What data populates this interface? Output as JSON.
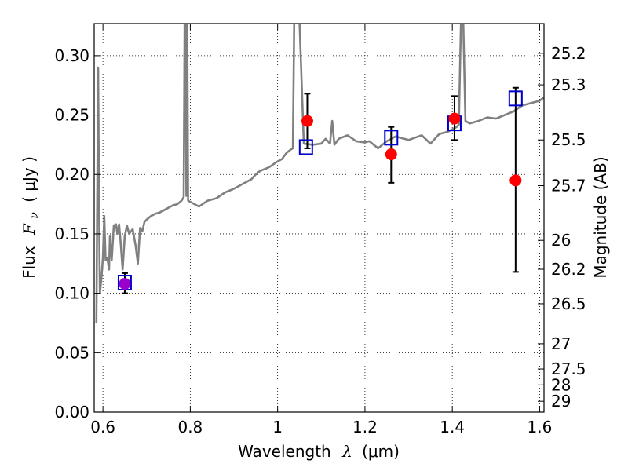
{
  "chart_data": {
    "type": "scatter",
    "xlabel": {
      "text": "Wavelength",
      "symbol": "λ",
      "unit": "(μm)"
    },
    "ylabel": {
      "text": "Flux",
      "symbol": "F",
      "subscript": "ν",
      "unit": "( μJy )"
    },
    "y2label": "Magnitude (AB)",
    "xlim": [
      0.58,
      1.61
    ],
    "ylim": [
      0.0,
      0.327
    ],
    "grid": true,
    "x_ticks": [
      0.6,
      0.8,
      1.0,
      1.2,
      1.4,
      1.6
    ],
    "x_tick_labels": [
      "0.6",
      "0.8",
      "1",
      "1.2",
      "1.4",
      "1.6"
    ],
    "y_ticks": [
      0.0,
      0.05,
      0.1,
      0.15,
      0.2,
      0.25,
      0.3
    ],
    "y_tick_labels": [
      "0.00",
      "0.05",
      "0.10",
      "0.15",
      "0.20",
      "0.25",
      "0.30"
    ],
    "mag_ticks": [
      25.2,
      25.3,
      25.5,
      25.7,
      26,
      26.2,
      26.5,
      27,
      27.5,
      28,
      29
    ],
    "mag_tick_labels": [
      "25.2",
      "25.3",
      "25.5",
      "25.7",
      "26",
      "26.2",
      "26.5",
      "27",
      "27.5",
      "28",
      "29"
    ],
    "series": [
      {
        "kind": "line",
        "color": "#808080",
        "x": [
          0.585,
          0.589,
          0.591,
          0.593,
          0.597,
          0.6,
          0.603,
          0.606,
          0.61,
          0.614,
          0.616,
          0.62,
          0.625,
          0.63,
          0.633,
          0.637,
          0.64,
          0.645,
          0.65,
          0.655,
          0.66,
          0.668,
          0.675,
          0.68,
          0.685,
          0.69,
          0.695,
          0.7,
          0.71,
          0.72,
          0.73,
          0.74,
          0.75,
          0.76,
          0.77,
          0.78,
          0.785,
          0.787,
          0.789,
          0.791,
          0.793,
          0.795,
          0.8,
          0.82,
          0.84,
          0.86,
          0.88,
          0.9,
          0.92,
          0.94,
          0.95,
          0.96,
          0.98,
          1.0,
          1.01,
          1.02,
          1.03,
          1.035,
          1.038,
          1.04,
          1.045,
          1.05,
          1.06,
          1.08,
          1.1,
          1.11,
          1.12,
          1.125,
          1.13,
          1.14,
          1.16,
          1.18,
          1.2,
          1.21,
          1.23,
          1.25,
          1.27,
          1.3,
          1.33,
          1.35,
          1.37,
          1.39,
          1.4,
          1.41,
          1.415,
          1.42,
          1.425,
          1.43,
          1.44,
          1.45,
          1.46,
          1.48,
          1.5,
          1.52,
          1.54,
          1.56,
          1.58,
          1.6,
          1.61
        ],
        "y": [
          0.075,
          0.29,
          0.18,
          0.1,
          0.115,
          0.13,
          0.165,
          0.128,
          0.13,
          0.12,
          0.148,
          0.128,
          0.157,
          0.158,
          0.15,
          0.158,
          0.145,
          0.12,
          0.148,
          0.157,
          0.15,
          0.154,
          0.14,
          0.125,
          0.155,
          0.152,
          0.16,
          0.162,
          0.165,
          0.167,
          0.168,
          0.17,
          0.172,
          0.174,
          0.175,
          0.178,
          0.181,
          0.33,
          0.33,
          0.182,
          0.33,
          0.178,
          0.177,
          0.173,
          0.178,
          0.18,
          0.185,
          0.188,
          0.192,
          0.196,
          0.2,
          0.203,
          0.206,
          0.211,
          0.213,
          0.218,
          0.221,
          0.222,
          0.33,
          0.33,
          0.33,
          0.33,
          0.226,
          0.225,
          0.226,
          0.23,
          0.226,
          0.245,
          0.225,
          0.23,
          0.233,
          0.228,
          0.227,
          0.228,
          0.222,
          0.228,
          0.232,
          0.229,
          0.233,
          0.226,
          0.234,
          0.236,
          0.238,
          0.24,
          0.242,
          0.33,
          0.33,
          0.245,
          0.243,
          0.244,
          0.245,
          0.248,
          0.247,
          0.25,
          0.253,
          0.258,
          0.26,
          0.262,
          0.265
        ]
      },
      {
        "kind": "model_points",
        "marker": "square",
        "color": "#0000cc",
        "x": [
          0.65,
          1.065,
          1.26,
          1.405,
          1.545
        ],
        "y": [
          0.109,
          0.223,
          0.231,
          0.243,
          0.264
        ]
      },
      {
        "kind": "observations",
        "marker": "circle",
        "color": "#ff0000",
        "highlight_color": "#9900cc",
        "x": [
          0.65,
          1.068,
          1.26,
          1.405,
          1.545
        ],
        "y": [
          0.108,
          0.245,
          0.217,
          0.247,
          0.195
        ],
        "yerr_low": [
          0.1,
          0.222,
          0.193,
          0.229,
          0.118
        ],
        "yerr_high": [
          0.117,
          0.268,
          0.24,
          0.266,
          0.273
        ]
      }
    ]
  }
}
